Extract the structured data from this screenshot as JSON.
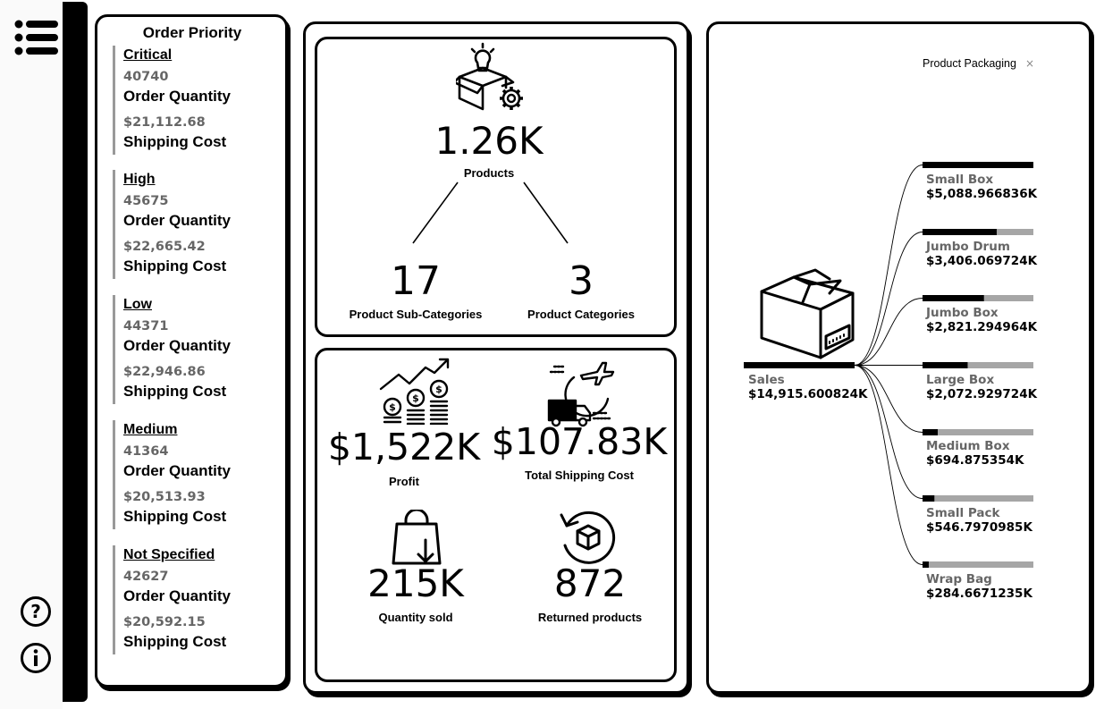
{
  "order_priority": {
    "title": "Order Priority",
    "groups": [
      {
        "name": "Critical",
        "quantity": "40740",
        "quantity_label": "Order Quantity",
        "cost": "$21,112.68",
        "cost_label": "Shipping Cost"
      },
      {
        "name": "High",
        "quantity": "45675",
        "quantity_label": "Order Quantity",
        "cost": "$22,665.42",
        "cost_label": "Shipping Cost"
      },
      {
        "name": "Low",
        "quantity": "44371",
        "quantity_label": "Order Quantity",
        "cost": "$22,946.86",
        "cost_label": "Shipping Cost"
      },
      {
        "name": "Medium",
        "quantity": "41364",
        "quantity_label": "Order Quantity",
        "cost": "$20,513.93",
        "cost_label": "Shipping Cost"
      },
      {
        "name": "Not Specified",
        "quantity": "42627",
        "quantity_label": "Order Quantity",
        "cost": "$20,592.15",
        "cost_label": "Shipping Cost"
      }
    ]
  },
  "products": {
    "icon": "product-box-lightbulb-icon",
    "value": "1.26K",
    "label": "Products",
    "sub_categories_value": "17",
    "sub_categories_label": "Product Sub-Categories",
    "categories_value": "3",
    "categories_label": "Product Categories"
  },
  "kpis": {
    "profit": {
      "value": "$1,522K",
      "label": "Profit",
      "icon": "money-growth-icon"
    },
    "shipping": {
      "value": "$107.83K",
      "label": "Total Shipping Cost",
      "icon": "delivery-truck-plane-icon"
    },
    "quantity": {
      "value": "215K",
      "label": "Quantity sold",
      "icon": "shopping-bag-icon"
    },
    "returned": {
      "value": "872",
      "label": "Returned products",
      "icon": "return-box-icon"
    }
  },
  "tree": {
    "field_label": "Product Packaging",
    "close_symbol": "×",
    "root": {
      "name": "Sales",
      "value": "$14,915.600824K",
      "fill": 1.0
    },
    "nodes": [
      {
        "name": "Small Box",
        "value": "$5,088.966836K",
        "fill": 1.0
      },
      {
        "name": "Jumbo Drum",
        "value": "$3,406.069724K",
        "fill": 0.669
      },
      {
        "name": "Jumbo Box",
        "value": "$2,821.294964K",
        "fill": 0.554
      },
      {
        "name": "Large Box",
        "value": "$2,072.929724K",
        "fill": 0.407
      },
      {
        "name": "Medium Box",
        "value": "$694.875354K",
        "fill": 0.137
      },
      {
        "name": "Small Pack",
        "value": "$546.7970985K",
        "fill": 0.107
      },
      {
        "name": "Wrap Bag",
        "value": "$284.6671235K",
        "fill": 0.056
      }
    ],
    "colors": {
      "bar_fill": "#000000",
      "bar_track": "#a6a6a6"
    }
  }
}
